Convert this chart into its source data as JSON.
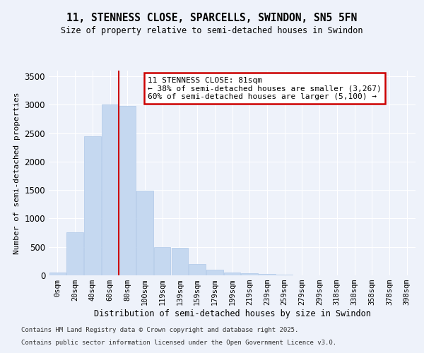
{
  "title1": "11, STENNESS CLOSE, SPARCELLS, SWINDON, SN5 5FN",
  "title2": "Size of property relative to semi-detached houses in Swindon",
  "xlabel": "Distribution of semi-detached houses by size in Swindon",
  "ylabel": "Number of semi-detached properties",
  "bins": [
    "0sqm",
    "20sqm",
    "40sqm",
    "60sqm",
    "80sqm",
    "100sqm",
    "119sqm",
    "139sqm",
    "159sqm",
    "179sqm",
    "199sqm",
    "219sqm",
    "239sqm",
    "259sqm",
    "279sqm",
    "299sqm",
    "318sqm",
    "338sqm",
    "358sqm",
    "378sqm",
    "398sqm"
  ],
  "values": [
    55,
    760,
    2450,
    3000,
    2980,
    1490,
    500,
    490,
    200,
    100,
    50,
    35,
    20,
    10,
    5,
    3,
    2,
    1,
    1,
    0,
    0
  ],
  "bar_color": "#c5d8f0",
  "bar_edge_color": "#aec8e8",
  "vline_color": "#cc0000",
  "annotation_title": "11 STENNESS CLOSE: 81sqm",
  "annotation_line2": "← 38% of semi-detached houses are smaller (3,267)",
  "annotation_line3": "60% of semi-detached houses are larger (5,100) →",
  "annotation_box_color": "#cc0000",
  "ylim": [
    0,
    3600
  ],
  "yticks": [
    0,
    500,
    1000,
    1500,
    2000,
    2500,
    3000,
    3500
  ],
  "footer1": "Contains HM Land Registry data © Crown copyright and database right 2025.",
  "footer2": "Contains public sector information licensed under the Open Government Licence v3.0.",
  "bg_color": "#eef2fa"
}
